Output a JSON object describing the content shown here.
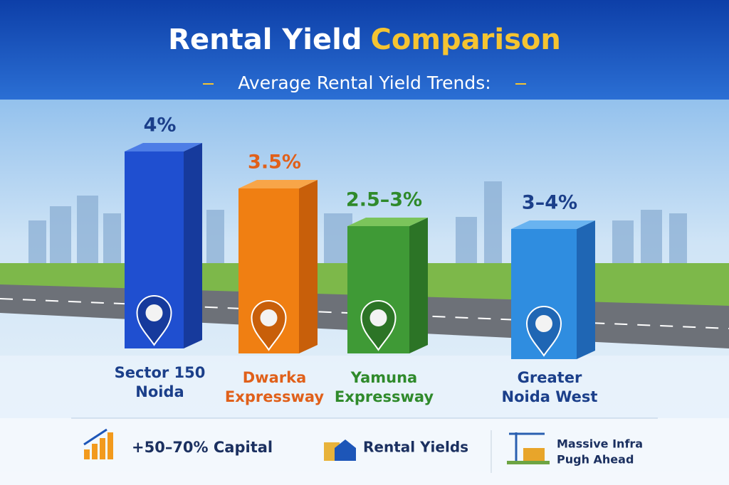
{
  "header": {
    "title_main": "Rental Yield",
    "title_accent": "Comparison",
    "subtitle": "Average Rental Yield Trends:"
  },
  "bars": [
    {
      "value": "4%",
      "name_lines": [
        "Sector 150",
        "Noida"
      ]
    },
    {
      "value": "3.5%",
      "name_lines": [
        "Dwarka",
        "Expressway"
      ]
    },
    {
      "value": "2.5–3%",
      "name_lines": [
        "Yamuna",
        "Expressway"
      ]
    },
    {
      "value": "3–4%",
      "name_lines": [
        "Greater",
        "Noida West"
      ]
    }
  ],
  "footer": [
    {
      "lines": [
        "+50–70% Capital"
      ]
    },
    {
      "lines": [
        "Rental Yields"
      ]
    },
    {
      "lines": [
        "Massive Infra",
        "Pugh Ahead"
      ]
    }
  ]
}
